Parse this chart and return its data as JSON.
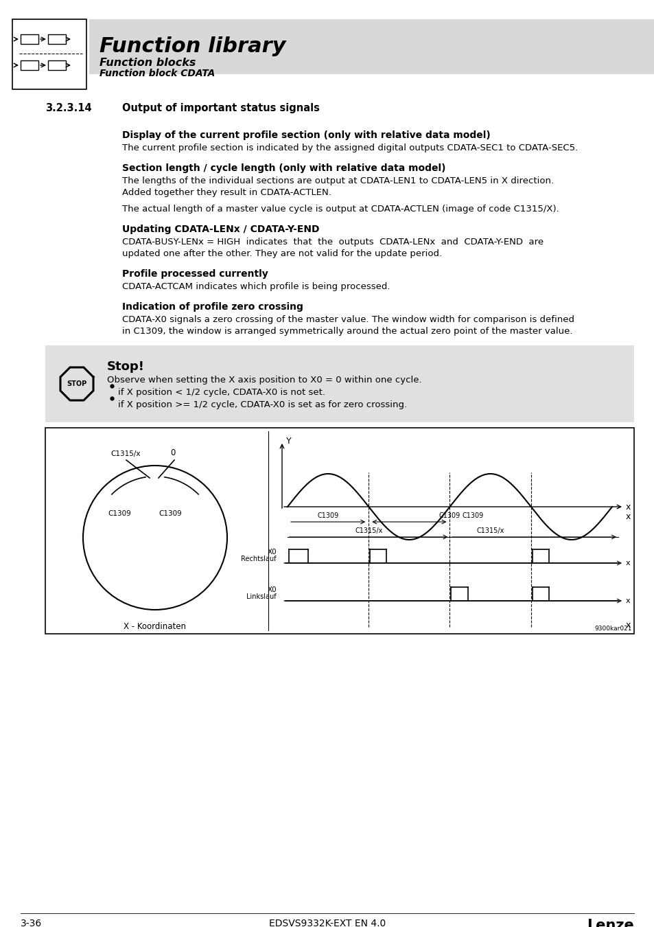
{
  "header_bg": "#d8d8d8",
  "header_title": "Function library",
  "header_sub1": "Function blocks",
  "header_sub2": "Function block CDATA",
  "section_number": "3.2.3.14",
  "section_title": "Output of important status signals",
  "subsections": [
    {
      "title": "Display of the current profile section (only with relative data model)",
      "body": "The current profile section is indicated by the assigned digital outputs CDATA-SEC1 to CDATA-SEC5."
    },
    {
      "title": "Section length / cycle length (only with relative data model)",
      "body": "The lengths of the individual sections are output at CDATA-LEN1 to CDATA-LEN5 in X direction.\nAdded together they result in CDATA-ACTLEN.\n\nThe actual length of a master value cycle is output at CDATA-ACTLEN (image of code C1315/X)."
    },
    {
      "title": "Updating CDATA-LENx / CDATA-Y-END",
      "body": "CDATA-BUSY-LENx = HIGH  indicates  that  the  outputs  CDATA-LENx  and  CDATA-Y-END  are\nupdated one after the other. They are not valid for the update period."
    },
    {
      "title": "Profile processed currently",
      "body": "CDATA-ACTCAM indicates which profile is being processed."
    },
    {
      "title": "Indication of profile zero crossing",
      "body": "CDATA-X0 signals a zero crossing of the master value. The window width for comparison is defined\nin C1309, the window is arranged symmetrically around the actual zero point of the master value."
    }
  ],
  "stop_bg": "#e0e0e0",
  "stop_title": "Stop!",
  "stop_observe": "Observe when setting the X axis position to X0 = 0 within one cycle.",
  "stop_bullets": [
    "if X position < 1/2 cycle, CDATA-X0 is not set.",
    "if X position >= 1/2 cycle, CDATA-X0 is set as for zero crossing."
  ],
  "footer_left": "3-36",
  "footer_center": "EDSVS9332K-EXT EN 4.0",
  "footer_right": "Lenze",
  "page_bg": "#ffffff",
  "text_color": "#000000"
}
